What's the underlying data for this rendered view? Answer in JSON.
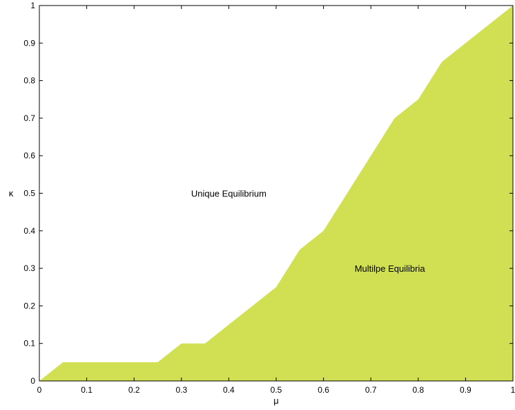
{
  "chart_data": {
    "type": "area",
    "title": "",
    "xlabel": "μ",
    "ylabel": "κ",
    "xlim": [
      0,
      1
    ],
    "ylim": [
      0,
      1
    ],
    "grid": false,
    "x_ticks": [
      0,
      0.1,
      0.2,
      0.3,
      0.4,
      0.5,
      0.6,
      0.7,
      0.8,
      0.9,
      1
    ],
    "y_ticks": [
      0,
      0.1,
      0.2,
      0.3,
      0.4,
      0.5,
      0.6,
      0.7,
      0.8,
      0.9,
      1
    ],
    "x_tick_labels": [
      "0",
      "0.1",
      "0.2",
      "0.3",
      "0.4",
      "0.5",
      "0.6",
      "0.7",
      "0.8",
      "0.9",
      "1"
    ],
    "y_tick_labels": [
      "0",
      "0.1",
      "0.2",
      "0.3",
      "0.4",
      "0.5",
      "0.6",
      "0.7",
      "0.8",
      "0.9",
      "1"
    ],
    "series": [
      {
        "x": [
          0,
          0.05,
          0.1,
          0.15,
          0.2,
          0.25,
          0.3,
          0.35,
          0.4,
          0.45,
          0.5,
          0.55,
          0.6,
          0.65,
          0.7,
          0.75,
          0.8,
          0.85,
          0.9,
          0.95,
          1
        ],
        "values": [
          0,
          0.05,
          0.05,
          0.05,
          0.05,
          0.05,
          0.1,
          0.1,
          0.15,
          0.2,
          0.25,
          0.35,
          0.4,
          0.5,
          0.6,
          0.7,
          0.75,
          0.85,
          0.9,
          0.95,
          1
        ],
        "color": "#d1e053"
      }
    ],
    "annotations": [
      {
        "text": "Unique Equilibrium",
        "x": 0.4,
        "y": 0.5
      },
      {
        "text": "Multilpe Equilibria",
        "x": 0.74,
        "y": 0.3
      }
    ]
  }
}
